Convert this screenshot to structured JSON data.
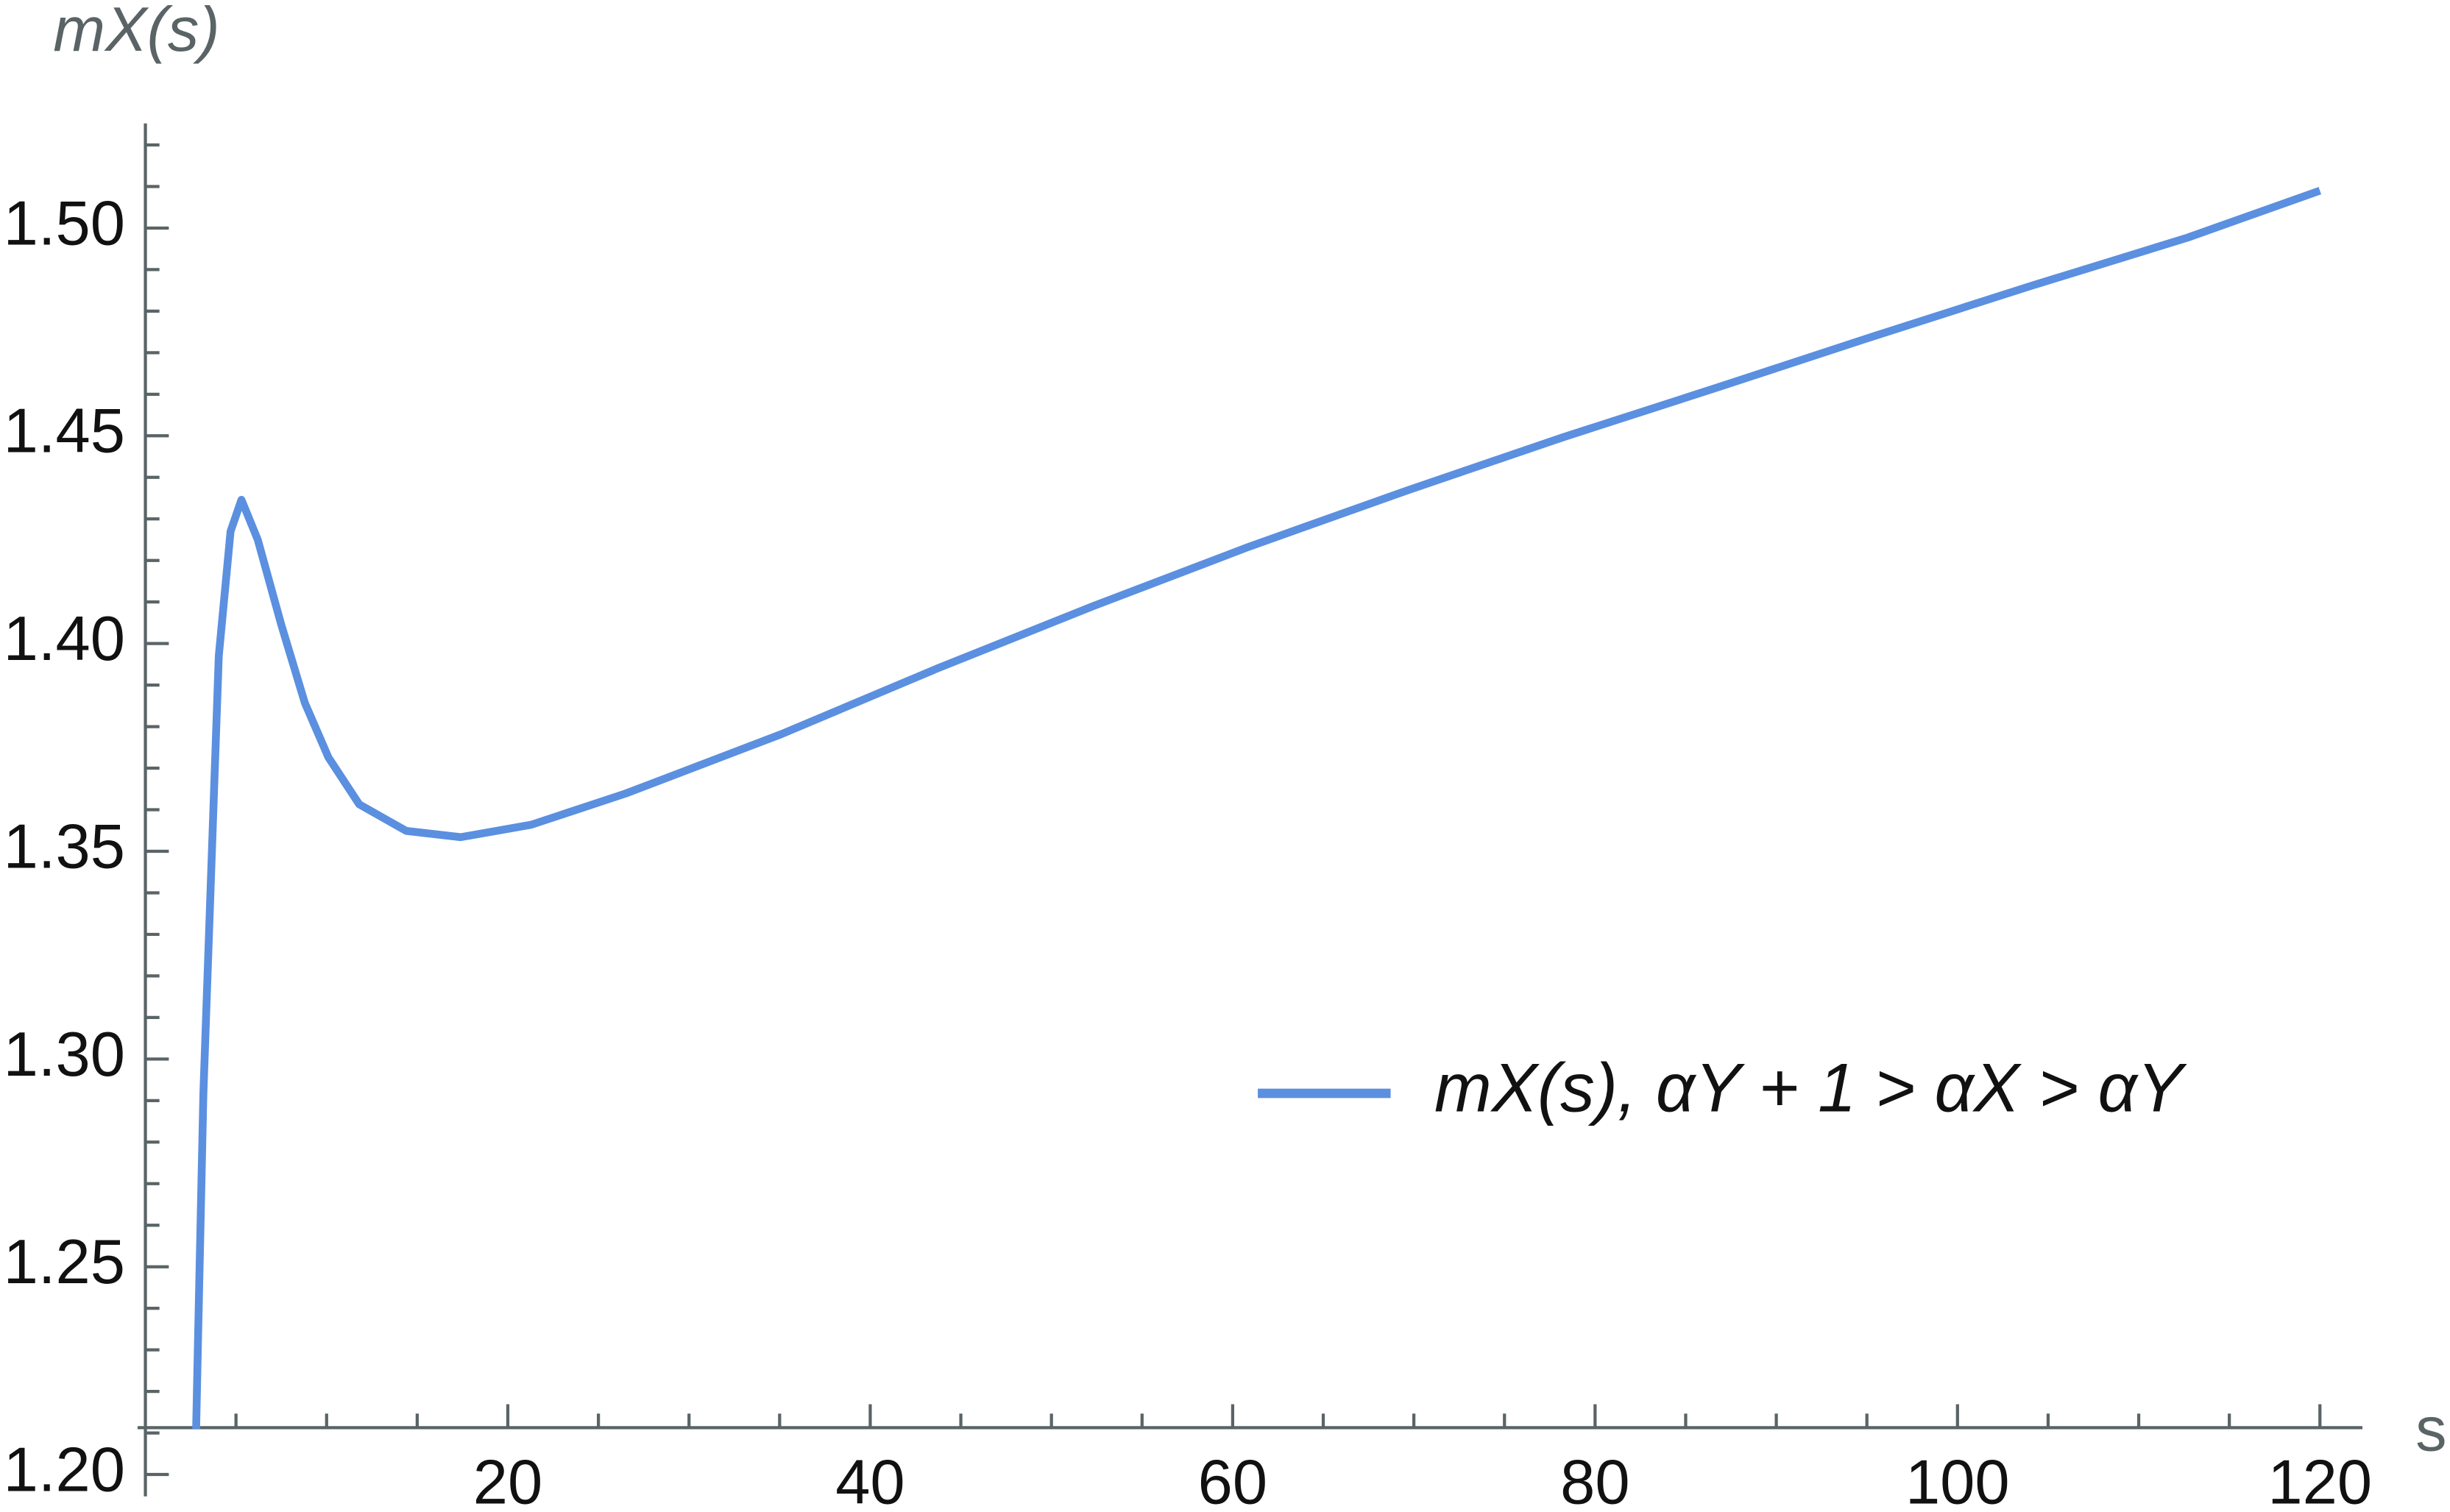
{
  "chart_data": {
    "type": "line",
    "y_label": "mX(s)",
    "x_label": "s",
    "x": [
      2.8,
      2.9,
      3.2,
      4.05,
      4.7,
      5.3,
      6.2,
      7.5,
      8.8,
      10.1,
      11.8,
      14.4,
      17.4,
      21.3,
      26.5,
      35.1,
      43.7,
      52.3,
      60.9,
      69.6,
      78.2,
      86.8,
      95.4,
      104,
      112.7,
      120
    ],
    "series": [
      {
        "name": "mX(s), αY + 1 > αX > αY",
        "color": "#5b8fe0",
        "values": [
          1.211,
          1.2316,
          1.2917,
          1.397,
          1.427,
          1.4346,
          1.425,
          1.4045,
          1.3857,
          1.3726,
          1.3613,
          1.3549,
          1.3534,
          1.3564,
          1.3639,
          1.3782,
          1.394,
          1.409,
          1.4233,
          1.4368,
          1.4496,
          1.4617,
          1.474,
          1.486,
          1.4977,
          1.509
        ]
      }
    ],
    "xlim": [
      0,
      122
    ],
    "ylim": [
      1.2,
      1.525
    ],
    "xticks": [
      20,
      40,
      60,
      80,
      100,
      120
    ],
    "xminorticks": [
      5,
      10,
      15,
      25,
      30,
      35,
      45,
      50,
      55,
      65,
      70,
      75,
      85,
      90,
      95,
      105,
      110,
      115
    ],
    "yticks": [
      {
        "value": 1.2,
        "label": "1.20"
      },
      {
        "value": 1.25,
        "label": "1.25"
      },
      {
        "value": 1.3,
        "label": "1.30"
      },
      {
        "value": 1.35,
        "label": "1.35"
      },
      {
        "value": 1.4,
        "label": "1.40"
      },
      {
        "value": 1.45,
        "label": "1.45"
      },
      {
        "value": 1.5,
        "label": "1.50"
      }
    ],
    "yminorticks": [
      1.21,
      1.22,
      1.23,
      1.24,
      1.26,
      1.27,
      1.28,
      1.29,
      1.31,
      1.32,
      1.33,
      1.34,
      1.36,
      1.37,
      1.38,
      1.39,
      1.41,
      1.42,
      1.43,
      1.44,
      1.46,
      1.47,
      1.48,
      1.49,
      1.51,
      1.52
    ],
    "grid": false
  }
}
